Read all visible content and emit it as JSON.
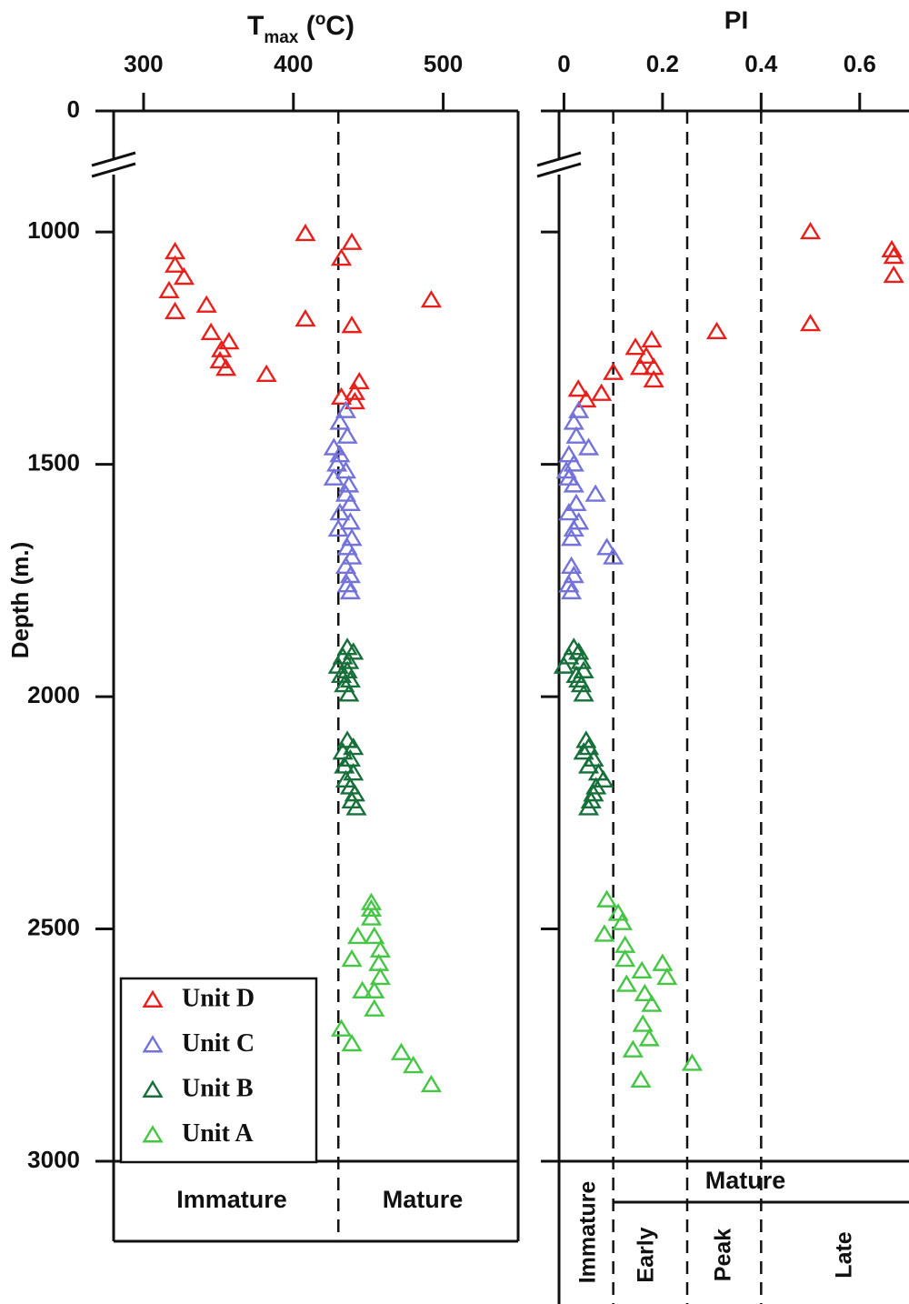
{
  "chart_data": [
    {
      "type": "scatter",
      "xlabel_parts": [
        "T",
        "max",
        " (",
        "o",
        "C)"
      ],
      "ylabel": "Depth (m.)",
      "xlim": [
        280,
        550
      ],
      "xticks": [
        300,
        400,
        500
      ],
      "ylim": [
        0,
        3000
      ],
      "y_break": [
        0,
        800
      ],
      "yticks": [
        0,
        1000,
        1500,
        2000,
        2500,
        3000
      ],
      "zone_lines": [
        430
      ],
      "zone_labels": [
        "Immature",
        "Mature"
      ],
      "legend": "lower left",
      "series": [
        {
          "name": "Unit D",
          "color": "#e8201c",
          "x": [
            321,
            321,
            327,
            317,
            321,
            342,
            345,
            357,
            352,
            351,
            355,
            382,
            408,
            439,
            432,
            492,
            408,
            439,
            444,
            441,
            432,
            441
          ],
          "values": [
            1043,
            1072,
            1098,
            1127,
            1172,
            1158,
            1217,
            1237,
            1254,
            1278,
            1294,
            1307,
            1004,
            1023,
            1057,
            1147,
            1188,
            1202,
            1323,
            1346,
            1356,
            1366
          ]
        },
        {
          "name": "Unit C",
          "color": "#7373d9",
          "x": [
            435,
            431,
            436,
            427,
            431,
            429,
            435,
            427,
            437,
            435,
            438,
            431,
            438,
            430,
            439,
            436,
            439,
            435,
            438,
            436,
            438
          ],
          "values": [
            1385,
            1410,
            1440,
            1465,
            1480,
            1500,
            1515,
            1530,
            1545,
            1565,
            1585,
            1605,
            1625,
            1640,
            1660,
            1680,
            1700,
            1720,
            1740,
            1760,
            1775
          ]
        },
        {
          "name": "Unit B",
          "color": "#17703a",
          "x": [
            436,
            440,
            433,
            437,
            430,
            436,
            432,
            438,
            434,
            437,
            436,
            440,
            433,
            438,
            434,
            440,
            435,
            438,
            441,
            439,
            442
          ],
          "values": [
            1895,
            1905,
            1915,
            1925,
            1935,
            1945,
            1955,
            1965,
            1975,
            1995,
            2095,
            2110,
            2120,
            2135,
            2150,
            2165,
            2180,
            2195,
            2210,
            2225,
            2240
          ]
        },
        {
          "name": "Unit A",
          "color": "#45c645",
          "x": [
            452,
            452,
            452,
            454,
            443,
            458,
            439,
            457,
            458,
            454,
            446,
            454,
            432,
            439,
            472,
            480,
            492
          ],
          "values": [
            2444,
            2458,
            2477,
            2517,
            2517,
            2546,
            2566,
            2575,
            2605,
            2634,
            2634,
            2673,
            2716,
            2748,
            2767,
            2795,
            2836
          ]
        }
      ]
    },
    {
      "type": "scatter",
      "title": "PI",
      "xlim": [
        -0.01,
        0.7
      ],
      "xticks": [
        0,
        0.2,
        0.4,
        0.6
      ],
      "ylim": [
        0,
        3000
      ],
      "y_break": [
        0,
        800
      ],
      "yticks": [
        0,
        1000,
        1500,
        2000,
        2500,
        3000
      ],
      "show_ytick_labels": false,
      "zone_lines": [
        0.1,
        0.25,
        0.4
      ],
      "zone_labels": [
        "Immature",
        "Mature",
        "Early",
        "Peak",
        "Late"
      ],
      "series": [
        {
          "name": "Unit D",
          "color": "#e8201c",
          "x": [
            0.5,
            0.665,
            0.669,
            0.669,
            0.5,
            0.31,
            0.178,
            0.145,
            0.167,
            0.155,
            0.182,
            0.182,
            0.1,
            0.076,
            0.029,
            0.045
          ],
          "values": [
            1000,
            1039,
            1053,
            1094,
            1198,
            1215,
            1233,
            1249,
            1268,
            1292,
            1292,
            1319,
            1303,
            1348,
            1339,
            1362
          ]
        },
        {
          "name": "Unit C",
          "color": "#7373d9",
          "x": [
            0.03,
            0.02,
            0.025,
            0.05,
            0.01,
            0.02,
            0.005,
            0.01,
            0.02,
            0.064,
            0.025,
            0.01,
            0.03,
            0.02,
            0.015,
            0.087,
            0.1,
            0.015,
            0.02,
            0.01,
            0.015
          ],
          "values": [
            1385,
            1410,
            1440,
            1465,
            1480,
            1500,
            1515,
            1530,
            1545,
            1565,
            1585,
            1605,
            1625,
            1640,
            1660,
            1680,
            1700,
            1720,
            1740,
            1760,
            1775
          ]
        },
        {
          "name": "Unit B",
          "color": "#17703a",
          "x": [
            0.02,
            0.03,
            0.01,
            0.035,
            0,
            0.04,
            0.025,
            0.03,
            0.035,
            0.04,
            0.045,
            0.05,
            0.04,
            0.06,
            0.05,
            0.07,
            0.08,
            0.065,
            0.06,
            0.055,
            0.05
          ],
          "values": [
            1895,
            1905,
            1915,
            1925,
            1935,
            1945,
            1955,
            1965,
            1975,
            1995,
            2095,
            2110,
            2120,
            2135,
            2150,
            2165,
            2180,
            2195,
            2210,
            2225,
            2240
          ]
        },
        {
          "name": "Unit A",
          "color": "#45c645",
          "x": [
            0.087,
            0.11,
            0.082,
            0.118,
            0.124,
            0.124,
            0.2,
            0.158,
            0.209,
            0.127,
            0.164,
            0.178,
            0.16,
            0.173,
            0.14,
            0.26,
            0.156
          ],
          "values": [
            2438,
            2467,
            2512,
            2487,
            2536,
            2566,
            2575,
            2591,
            2605,
            2620,
            2640,
            2663,
            2706,
            2737,
            2761,
            2790,
            2826
          ]
        }
      ]
    }
  ]
}
